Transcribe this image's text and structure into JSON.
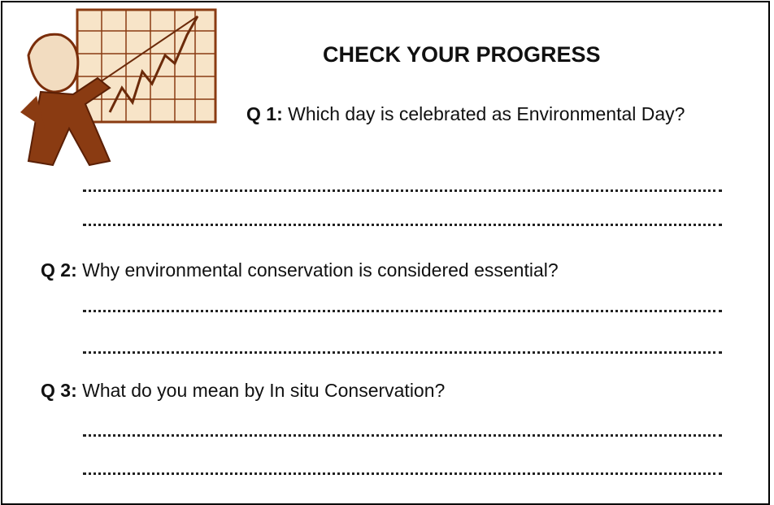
{
  "header": {
    "title": "CHECK YOUR PROGRESS"
  },
  "questions": [
    {
      "label": "Q 1:",
      "text": "Which day is celebrated as Environmental Day?"
    },
    {
      "label": "Q 2:",
      "text": "Why environmental conservation is considered essential?"
    },
    {
      "label": "Q 3:",
      "text": "What do you mean by In situ Conservation?"
    }
  ]
}
